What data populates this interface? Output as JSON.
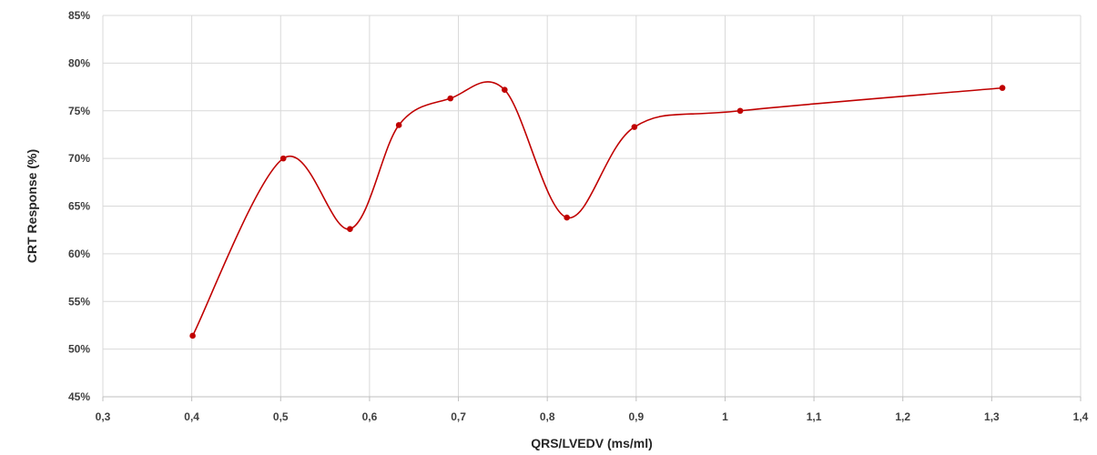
{
  "chart_data": {
    "type": "line",
    "smooth": true,
    "title": "",
    "xlabel": "QRS/LVEDV (ms/ml)",
    "ylabel": "CRT Response (%)",
    "xlim": [
      0.3,
      1.4
    ],
    "ylim": [
      45,
      85
    ],
    "x_ticks": [
      "0,3",
      "0,4",
      "0,5",
      "0,6",
      "0,7",
      "0,8",
      "0,9",
      "1",
      "1,1",
      "1,2",
      "1,3",
      "1,4"
    ],
    "y_ticks": [
      "45%",
      "50%",
      "55%",
      "60%",
      "65%",
      "70%",
      "75%",
      "80%",
      "85%"
    ],
    "grid": true,
    "series": [
      {
        "color": "#c00000",
        "x": [
          0.401,
          0.503,
          0.578,
          0.633,
          0.691,
          0.752,
          0.822,
          0.898,
          1.017,
          1.312
        ],
        "y": [
          51.4,
          70.0,
          62.6,
          73.5,
          76.3,
          77.2,
          63.8,
          73.3,
          75.0,
          77.4
        ]
      }
    ]
  }
}
